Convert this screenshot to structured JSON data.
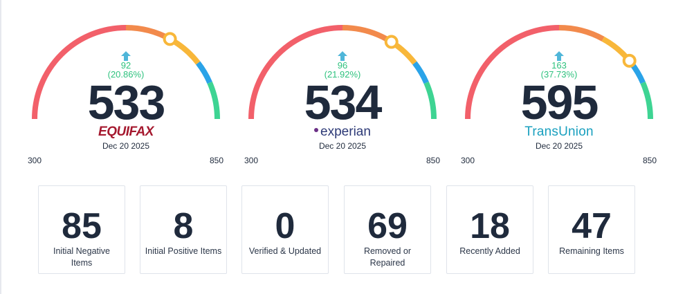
{
  "gauges": [
    {
      "brand": "EQUIFAX",
      "brand_key": "equifax",
      "score": "533",
      "change": "92",
      "change_pct": "(20.86%)",
      "date": "Dec 20 2025",
      "min": "300",
      "max": "850",
      "needle_fraction": 0.66
    },
    {
      "brand": "experian",
      "brand_key": "experian",
      "score": "534",
      "change": "96",
      "change_pct": "(21.92%)",
      "date": "Dec 20 2025",
      "min": "300",
      "max": "850",
      "needle_fraction": 0.68
    },
    {
      "brand": "TransUnion",
      "brand_key": "transunion",
      "score": "595",
      "change": "163",
      "change_pct": "(37.73%)",
      "date": "Dec 20 2025",
      "min": "300",
      "max": "850",
      "needle_fraction": 0.78
    }
  ],
  "stats": [
    {
      "value": "85",
      "label": "Initial Negative Items"
    },
    {
      "value": "8",
      "label": "Initial Positive Items"
    },
    {
      "value": "0",
      "label": "Verified & Updated"
    },
    {
      "value": "69",
      "label": "Removed or Repaired"
    },
    {
      "value": "18",
      "label": "Recently Added"
    },
    {
      "value": "47",
      "label": "Remaining Items"
    }
  ],
  "colors": {
    "red": "#f2606a",
    "orange": "#f28a4c",
    "yellow": "#f8b73a",
    "blue": "#2aa3e8",
    "green": "#3ed493",
    "up": "#4fb6d9",
    "change_text": "#2ec27e"
  },
  "icons": {
    "change_indicator": "arrow-up-icon",
    "needle": "needle-marker-icon"
  }
}
